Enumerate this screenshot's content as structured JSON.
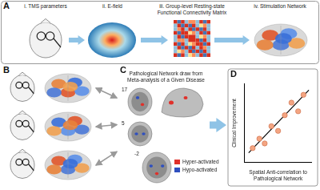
{
  "panels": {
    "A": {
      "label": "A",
      "steps": [
        "i. TMS parameters",
        "ii. E-field",
        "iii. Group-level Resting-state Functional Connectivity Matrix",
        "iv. Stimulation Network"
      ]
    },
    "B": {
      "label": "B"
    },
    "C": {
      "label": "C",
      "title": "Pathological Network draw from Meta-analysis of a Given Disease",
      "slice_labels": [
        "17",
        "5",
        "-2"
      ],
      "legend": [
        {
          "name": "Hyper-activated",
          "color": "#e0302a"
        },
        {
          "name": "Hypo-activated",
          "color": "#2f4fbf"
        }
      ]
    },
    "D": {
      "label": "D"
    }
  },
  "chart_data": {
    "type": "scatter",
    "x_label": "Spatial Anti-correlation to Pathological Network",
    "y_label": "Clinical Improvement",
    "series": [
      {
        "type": "scatter",
        "color": "#f4a582",
        "x": [
          1.2,
          2.2,
          3.0,
          4.0,
          5.0,
          6.0,
          7.0,
          8.0,
          8.8
        ],
        "values": [
          1.8,
          3.0,
          2.4,
          4.6,
          4.0,
          6.0,
          7.6,
          6.5,
          8.6
        ]
      },
      {
        "type": "line",
        "color": "#000000",
        "x": [
          0.6,
          9.6
        ],
        "values": [
          1.2,
          9.2
        ]
      }
    ],
    "xlim": [
      0,
      10
    ],
    "ylim": [
      0,
      10
    ],
    "xticks": [],
    "yticks": [],
    "grid": false,
    "tick_labels": false
  }
}
